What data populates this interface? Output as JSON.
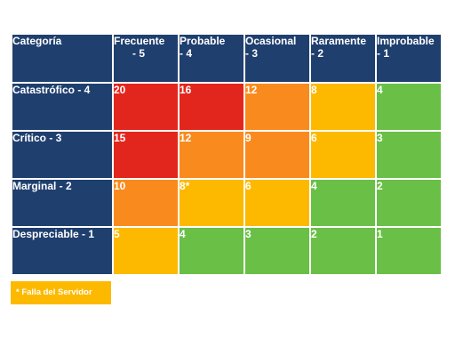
{
  "header": {
    "category": "Categoría",
    "columns": [
      {
        "line1": "Frecuente",
        "line2": "- 5"
      },
      {
        "line1": "Probable",
        "line2": "- 4"
      },
      {
        "line1": "Ocasional",
        "line2": "- 3"
      },
      {
        "line1": "Raramente",
        "line2": "- 2"
      },
      {
        "line1": "Improbable",
        "line2": "- 1"
      }
    ]
  },
  "rows": [
    {
      "label": "Catastrófico - 4",
      "cells": [
        "20",
        "16",
        "12",
        "8",
        "4"
      ]
    },
    {
      "label": "Crítico - 3",
      "cells": [
        "15",
        "12",
        "9",
        "6",
        "3"
      ]
    },
    {
      "label": "Marginal - 2",
      "cells": [
        "10",
        "8*",
        "6",
        "4",
        "2"
      ]
    },
    {
      "label": "Despreciable - 1",
      "cells": [
        "5",
        "4",
        "3",
        "2",
        "1"
      ]
    }
  ],
  "colors": {
    "header": "#1f3f6e",
    "red": "#e3261d",
    "orange": "#f98b1e",
    "yellow": "#fdb900",
    "green": "#6abf47"
  },
  "cell_levels": [
    [
      "red",
      "red",
      "orange",
      "yellow",
      "green"
    ],
    [
      "red",
      "orange",
      "orange",
      "yellow",
      "green"
    ],
    [
      "orange",
      "yellow",
      "yellow",
      "green",
      "green"
    ],
    [
      "yellow",
      "green",
      "green",
      "green",
      "green"
    ]
  ],
  "legend": {
    "note": "* Falla del Servidor"
  }
}
